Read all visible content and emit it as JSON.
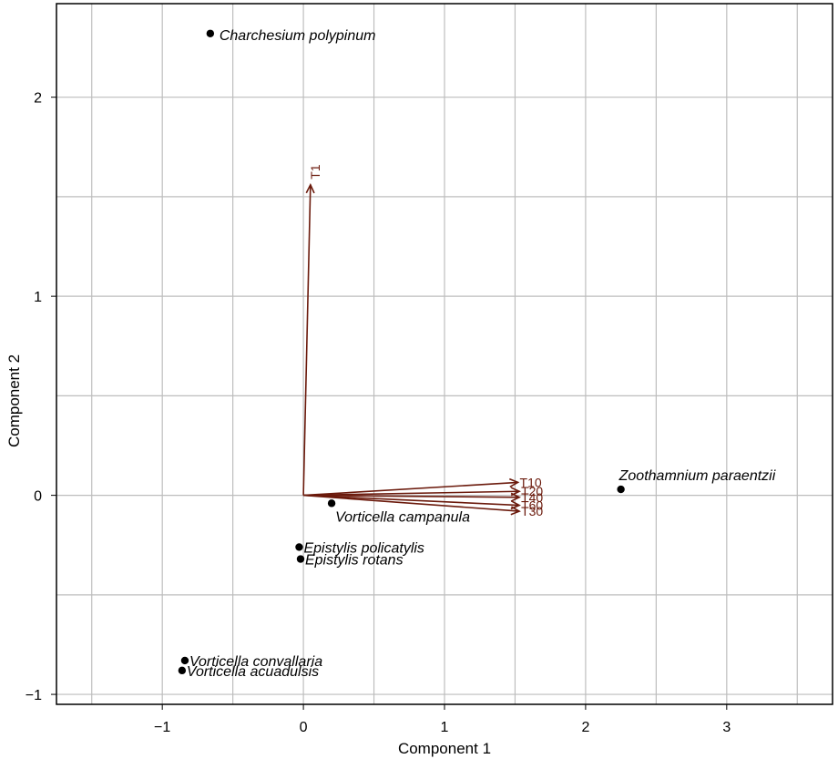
{
  "chart_data": {
    "type": "scatter",
    "title": "",
    "xlabel": "Component 1",
    "ylabel": "Component 2",
    "xlim": [
      -1.75,
      3.75
    ],
    "ylim": [
      -1.05,
      2.47
    ],
    "grid": true,
    "legend": "none",
    "xticks": [
      {
        "value": -1,
        "label": "−1"
      },
      {
        "value": 0,
        "label": "0"
      },
      {
        "value": 1,
        "label": "1"
      },
      {
        "value": 2,
        "label": "2"
      },
      {
        "value": 3,
        "label": "3"
      }
    ],
    "yticks": [
      {
        "value": -1,
        "label": "−1"
      },
      {
        "value": 0,
        "label": "0"
      },
      {
        "value": 1,
        "label": "1"
      },
      {
        "value": 2,
        "label": "2"
      }
    ],
    "minor_grid_x": [
      -1.5,
      -0.5,
      0.5,
      1.5,
      2.5,
      3.5
    ],
    "minor_grid_y": [
      -0.5,
      0.5,
      1.5
    ],
    "points": [
      {
        "label": "Charchesium polypinum",
        "x": -0.66,
        "y": 2.32
      },
      {
        "label": "Zoothamnium paraentzii",
        "x": 2.25,
        "y": 0.03
      },
      {
        "label": "Vorticella campanula",
        "x": 0.2,
        "y": -0.04
      },
      {
        "label": "Epistylis policatylis",
        "x": -0.03,
        "y": -0.26
      },
      {
        "label": "Epistylis rotans",
        "x": -0.02,
        "y": -0.32
      },
      {
        "label": "Vorticella convallaria",
        "x": -0.84,
        "y": -0.83
      },
      {
        "label": "Vorticella acuadulsis",
        "x": -0.86,
        "y": -0.88
      }
    ],
    "vectors": [
      {
        "label": "T1",
        "x": 0.05,
        "y": 1.56
      },
      {
        "label": "T10",
        "x": 1.52,
        "y": 0.065
      },
      {
        "label": "T20",
        "x": 1.53,
        "y": 0.02
      },
      {
        "label": "T40",
        "x": 1.53,
        "y": -0.01
      },
      {
        "label": "T60",
        "x": 1.53,
        "y": -0.05
      },
      {
        "label": "T30",
        "x": 1.53,
        "y": -0.08
      }
    ],
    "colors": {
      "vector": "#6b1a0c",
      "grid": "#bdbdbd",
      "point": "#000000",
      "frame": "#000000"
    }
  }
}
